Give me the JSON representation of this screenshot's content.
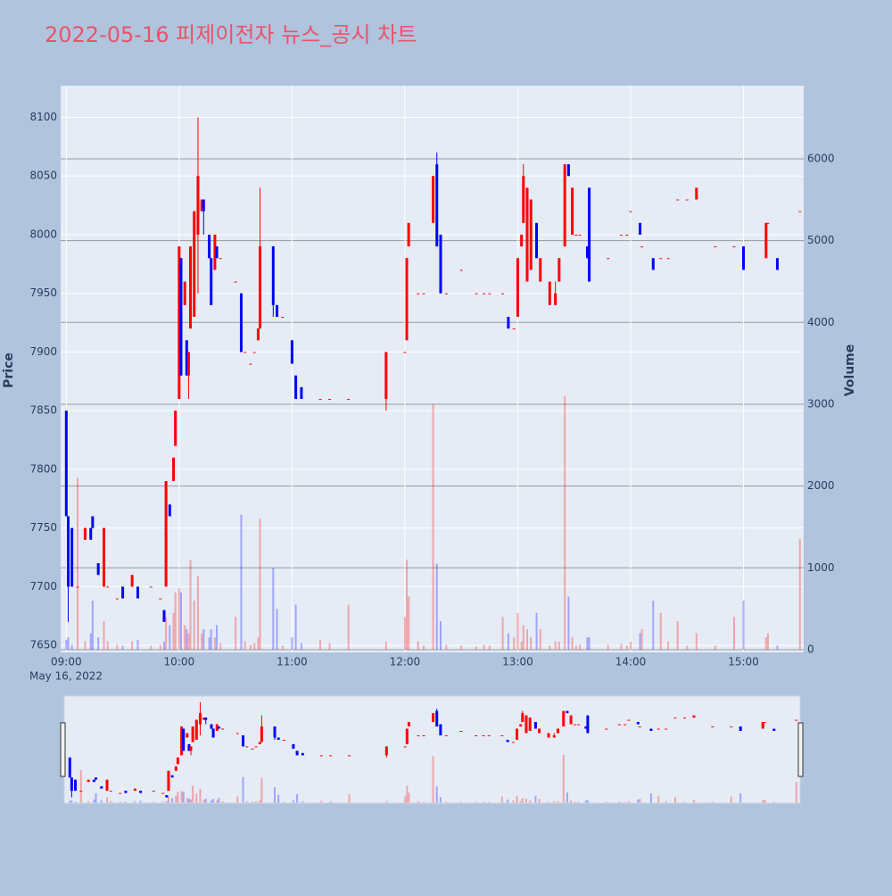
{
  "chart_data": {
    "type": "candlestick",
    "title": "2022-05-16 피제이전자 뉴스_공시 차트",
    "y_label": "Price",
    "y2_label": "Volume",
    "x_sublabel": "May 16, 2022",
    "up_color": "#ff0000",
    "down_color": "#0000ff",
    "xlim": [
      "08:57",
      "15:32"
    ],
    "xticks": [
      "09:00",
      "10:00",
      "11:00",
      "12:00",
      "13:00",
      "14:00",
      "15:00"
    ],
    "ylim": [
      7644,
      8127
    ],
    "yticks": [
      7650,
      7700,
      7750,
      7800,
      7850,
      7900,
      7950,
      8000,
      8050,
      8100
    ],
    "y2lim": [
      -33,
      6894
    ],
    "y2ticks": [
      0,
      1000,
      2000,
      3000,
      4000,
      5000,
      6000
    ],
    "x": [
      "09:00",
      "09:01",
      "09:03",
      "09:06",
      "09:10",
      "09:13",
      "09:14",
      "09:17",
      "09:20",
      "09:22",
      "09:27",
      "09:30",
      "09:35",
      "09:38",
      "09:45",
      "09:50",
      "09:52",
      "09:53",
      "09:55",
      "09:57",
      "09:58",
      "10:00",
      "10:01",
      "10:03",
      "10:04",
      "10:05",
      "10:06",
      "10:08",
      "10:10",
      "10:12",
      "10:13",
      "10:16",
      "10:17",
      "10:19",
      "10:20",
      "10:22",
      "10:30",
      "10:33",
      "10:35",
      "10:38",
      "10:40",
      "10:42",
      "10:43",
      "10:50",
      "10:52",
      "10:55",
      "11:00",
      "11:02",
      "11:05",
      "11:15",
      "11:20",
      "11:30",
      "11:50",
      "12:00",
      "12:01",
      "12:02",
      "12:07",
      "12:10",
      "12:15",
      "12:17",
      "12:19",
      "12:22",
      "12:30",
      "12:38",
      "12:42",
      "12:45",
      "12:52",
      "12:55",
      "12:58",
      "13:00",
      "13:02",
      "13:03",
      "13:05",
      "13:07",
      "13:10",
      "13:12",
      "13:17",
      "13:20",
      "13:22",
      "13:25",
      "13:27",
      "13:29",
      "13:31",
      "13:33",
      "13:37",
      "13:38",
      "13:48",
      "13:55",
      "13:58",
      "14:00",
      "14:05",
      "14:06",
      "14:12",
      "14:16",
      "14:20",
      "14:25",
      "14:30",
      "14:35",
      "14:45",
      "14:55",
      "15:00",
      "15:12",
      "15:13",
      "15:18",
      "15:30"
    ],
    "open": [
      7850,
      7760,
      7750,
      7700,
      7740,
      7750,
      7760,
      7720,
      7700,
      7700,
      7690,
      7700,
      7700,
      7700,
      7700,
      7690,
      7680,
      7700,
      7770,
      7790,
      7820,
      7860,
      7980,
      7940,
      7910,
      7880,
      7920,
      7930,
      8000,
      8020,
      8030,
      8000,
      7980,
      7970,
      7990,
      7980,
      7960,
      7950,
      7900,
      7890,
      7900,
      7910,
      7920,
      7990,
      7940,
      7930,
      7910,
      7880,
      7870,
      7860,
      7860,
      7860,
      7860,
      7900,
      7910,
      7990,
      7950,
      7950,
      8010,
      8060,
      8000,
      7950,
      7970,
      7950,
      7950,
      7950,
      7950,
      7930,
      7920,
      7930,
      7990,
      8010,
      7960,
      7970,
      8010,
      7960,
      7940,
      7940,
      7960,
      7990,
      8060,
      8000,
      8000,
      8000,
      7990,
      8040,
      7980,
      8000,
      8000,
      8020,
      8010,
      7990,
      7980,
      7980,
      7980,
      8030,
      8030,
      8030,
      7990,
      7990,
      7990,
      7980,
      8010,
      7980,
      8020
    ],
    "high": [
      7850,
      7760,
      7750,
      7700,
      7750,
      7750,
      7760,
      7720,
      7750,
      7700,
      7690,
      7700,
      7710,
      7700,
      7700,
      7690,
      7680,
      7790,
      7770,
      7810,
      7850,
      7990,
      7980,
      7960,
      7910,
      7900,
      7990,
      8020,
      8100,
      8030,
      8030,
      8000,
      7980,
      8000,
      7990,
      7980,
      7960,
      7950,
      7900,
      7890,
      7900,
      7920,
      8040,
      7990,
      7940,
      7930,
      7910,
      7880,
      7870,
      7860,
      7860,
      7860,
      7900,
      7900,
      7980,
      8010,
      7950,
      7950,
      8050,
      8070,
      8000,
      7950,
      7970,
      7950,
      7950,
      7950,
      7950,
      7930,
      7920,
      7980,
      8000,
      8060,
      8040,
      8030,
      8010,
      7980,
      7960,
      7960,
      7980,
      8060,
      8060,
      8040,
      8000,
      8000,
      7990,
      8040,
      7980,
      8000,
      8000,
      8020,
      8010,
      7990,
      7980,
      7980,
      7980,
      8030,
      8030,
      8040,
      7990,
      7990,
      7990,
      8010,
      8010,
      7980,
      8020
    ],
    "low": [
      7760,
      7670,
      7700,
      7700,
      7740,
      7740,
      7750,
      7710,
      7700,
      7700,
      7690,
      7690,
      7700,
      7690,
      7700,
      7690,
      7670,
      7700,
      7760,
      7790,
      7820,
      7860,
      7880,
      7940,
      7880,
      7860,
      7920,
      7930,
      7950,
      8020,
      8000,
      7980,
      7940,
      7970,
      7980,
      7980,
      7960,
      7900,
      7900,
      7890,
      7900,
      7910,
      7920,
      7930,
      7930,
      7930,
      7890,
      7860,
      7860,
      7860,
      7860,
      7860,
      7850,
      7900,
      7910,
      7990,
      7950,
      7950,
      8010,
      7990,
      7950,
      7950,
      7970,
      7950,
      7950,
      7950,
      7950,
      7920,
      7920,
      7930,
      7990,
      8010,
      7960,
      7970,
      7980,
      7960,
      7940,
      7940,
      7960,
      7990,
      8050,
      8000,
      8000,
      8000,
      7980,
      7960,
      7980,
      8000,
      8000,
      8020,
      8000,
      7990,
      7970,
      7980,
      7980,
      8030,
      8030,
      8030,
      7990,
      7990,
      7970,
      7980,
      8010,
      7970,
      8020
    ],
    "close": [
      7760,
      7700,
      7700,
      7700,
      7750,
      7740,
      7750,
      7710,
      7750,
      7700,
      7690,
      7690,
      7710,
      7690,
      7700,
      7690,
      7670,
      7790,
      7760,
      7810,
      7850,
      7990,
      7880,
      7960,
      7880,
      7900,
      7990,
      8020,
      8050,
      8030,
      8020,
      7980,
      7940,
      8000,
      7980,
      7980,
      7960,
      7900,
      7900,
      7890,
      7900,
      7920,
      7990,
      7940,
      7930,
      7930,
      7890,
      7860,
      7860,
      7860,
      7860,
      7860,
      7900,
      7900,
      7980,
      8010,
      7950,
      7950,
      8050,
      7990,
      7950,
      7950,
      7970,
      7950,
      7950,
      7950,
      7950,
      7920,
      7920,
      7980,
      8000,
      8050,
      8040,
      8030,
      7980,
      7980,
      7960,
      7950,
      7980,
      8060,
      8050,
      8040,
      8000,
      8000,
      7980,
      7960,
      7980,
      8000,
      8000,
      8020,
      8000,
      7990,
      7970,
      7980,
      7980,
      8030,
      8030,
      8040,
      7990,
      7990,
      7970,
      8010,
      8010,
      7970,
      8020
    ],
    "volume": [
      120,
      150,
      60,
      2100,
      100,
      200,
      600,
      150,
      350,
      100,
      60,
      50,
      100,
      120,
      50,
      60,
      100,
      400,
      300,
      450,
      700,
      750,
      700,
      300,
      250,
      200,
      1100,
      600,
      900,
      200,
      250,
      150,
      250,
      150,
      300,
      80,
      400,
      1650,
      100,
      60,
      80,
      150,
      1600,
      1000,
      500,
      50,
      150,
      550,
      80,
      120,
      80,
      550,
      100,
      400,
      1100,
      650,
      100,
      50,
      3000,
      1050,
      350,
      60,
      50,
      40,
      60,
      50,
      400,
      200,
      150,
      450,
      100,
      300,
      250,
      150,
      450,
      250,
      50,
      100,
      100,
      3100,
      650,
      150,
      50,
      60,
      150,
      150,
      60,
      70,
      50,
      100,
      200,
      250,
      600,
      450,
      100,
      350,
      50,
      200,
      50,
      400,
      600,
      150,
      200,
      50,
      1350
    ]
  }
}
